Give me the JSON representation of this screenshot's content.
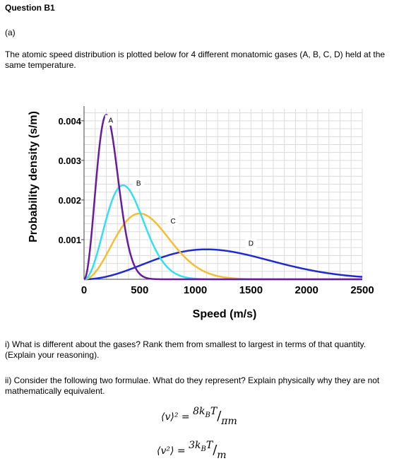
{
  "question": {
    "title": "Question B1",
    "part": "(a)",
    "intro": "The atomic speed distribution is plotted below for 4 different monatomic gases (A, B, C, D) held at the same temperature.",
    "q1": "i) What is different about the gases? Rank them from smallest to largest in terms of that quantity. (Explain your reasoning).",
    "q2": "ii) Consider the following two formulae. What do they represent? Explain physically why they are not mathematically equivalent."
  },
  "formulas": {
    "f1_lhs": "⟨v⟩² =",
    "f1_num": "8k",
    "f1_sub": "B",
    "f1_T": "T",
    "f1_den": "πm",
    "f2_lhs": "⟨v²⟩ =",
    "f2_num": "3k",
    "f2_sub": "B",
    "f2_T": "T",
    "f2_den": "m"
  },
  "chart_data": {
    "type": "line",
    "xlabel": "Speed (m/s)",
    "ylabel": "Probability density (s/m)",
    "xlim": [
      0,
      2500
    ],
    "ylim": [
      0,
      0.0043
    ],
    "xticks": [
      "0",
      "500",
      "1000",
      "1500",
      "2000",
      "2500"
    ],
    "yticks": [
      "0.001",
      "0.002",
      "0.003",
      "0.004"
    ],
    "grid": true,
    "series": [
      {
        "name": "A",
        "color": "#6a1b9a",
        "peak_speed": 200
      },
      {
        "name": "B",
        "color": "#33e0f0",
        "peak_speed": 350
      },
      {
        "name": "C",
        "color": "#f5be32",
        "peak_speed": 500
      },
      {
        "name": "D",
        "color": "#1f2bd0",
        "peak_speed": 1100
      }
    ]
  }
}
